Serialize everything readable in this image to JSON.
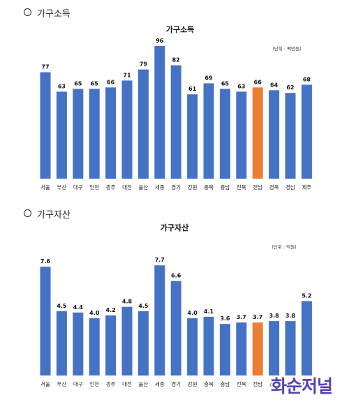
{
  "sections": [
    {
      "heading": "가구소득"
    },
    {
      "heading": "가구자산"
    }
  ],
  "watermark": "화순저널",
  "colors": {
    "bar": "#4472C4",
    "highlight": "#ED7D31"
  },
  "chart_data": [
    {
      "type": "bar",
      "title": "가구소득",
      "unit_note": "(단위 : 백만원)",
      "categories": [
        "서울",
        "부산",
        "대구",
        "인천",
        "광주",
        "대전",
        "울산",
        "세종",
        "경기",
        "강원",
        "충북",
        "충남",
        "전북",
        "전남",
        "경북",
        "경남",
        "제주"
      ],
      "values": [
        77,
        63,
        65,
        65,
        66,
        71,
        79,
        96,
        82,
        61,
        69,
        65,
        63,
        66,
        64,
        62,
        68
      ],
      "value_labels": [
        "77",
        "63",
        "65",
        "65",
        "66",
        "71",
        "79",
        "96",
        "82",
        "61",
        "69",
        "65",
        "63",
        "66",
        "64",
        "62",
        "68"
      ],
      "highlight_index": 13,
      "ylim": [
        0,
        100
      ],
      "grid": false,
      "xlabel": "",
      "ylabel": ""
    },
    {
      "type": "bar",
      "title": "가구자산",
      "unit_note": "(단위 : 억원)",
      "categories": [
        "서울",
        "부산",
        "대구",
        "인천",
        "광주",
        "대전",
        "울산",
        "세종",
        "경기",
        "강원",
        "충북",
        "충남",
        "전북",
        "전남",
        "경북",
        "경남",
        "제주"
      ],
      "values": [
        7.6,
        4.5,
        4.4,
        4.0,
        4.2,
        4.8,
        4.5,
        7.7,
        6.6,
        4.0,
        4.1,
        3.6,
        3.7,
        3.7,
        3.8,
        3.8,
        5.2
      ],
      "value_labels": [
        "7.6",
        "4.5",
        "4.4",
        "4.0",
        "4.2",
        "4.8",
        "4.5",
        "7.7",
        "6.6",
        "4.0",
        "4.1",
        "3.6",
        "3.7",
        "3.7",
        "3.8",
        "3.8",
        "5.2"
      ],
      "highlight_index": 13,
      "ylim": [
        0,
        8
      ],
      "grid": false,
      "xlabel": "",
      "ylabel": ""
    }
  ]
}
